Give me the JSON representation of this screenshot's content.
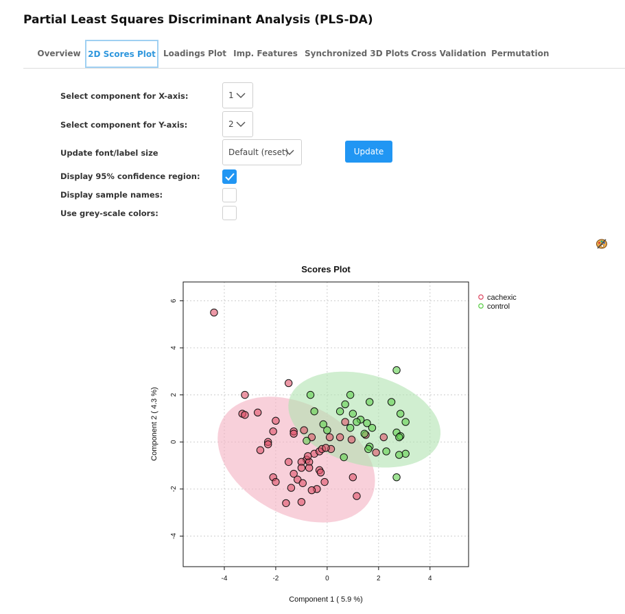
{
  "page": {
    "title": "Partial Least Squares Discriminant Analysis (PLS-DA)"
  },
  "tabs": [
    {
      "label": "Overview",
      "active": false
    },
    {
      "label": "2D Scores Plot",
      "active": true
    },
    {
      "label": "Loadings Plot",
      "active": false
    },
    {
      "label": "Imp. Features",
      "active": false
    },
    {
      "label": "Synchronized 3D Plots",
      "active": false
    },
    {
      "label": "Cross Validation",
      "active": false
    },
    {
      "label": "Permutation",
      "active": false
    }
  ],
  "form": {
    "x_axis": {
      "label": "Select component for X-axis:",
      "value": "1"
    },
    "y_axis": {
      "label": "Select component for Y-axis:",
      "value": "2"
    },
    "font_size": {
      "label": "Update font/label size",
      "value": "Default (reset)"
    },
    "update_button": "Update",
    "confidence": {
      "label": "Display 95% confidence region:",
      "checked": true
    },
    "sample_names": {
      "label": "Display sample names:",
      "checked": false
    },
    "greyscale": {
      "label": "Use grey-scale colors:",
      "checked": false
    }
  },
  "icons": {
    "palette": "palette-icon",
    "dropdown": "chevron-down-icon",
    "check": "check-icon"
  },
  "chart_data": {
    "type": "scatter",
    "title": "Scores Plot",
    "xlabel": "Component 1 ( 5.9 %)",
    "ylabel": "Component 2 ( 4.3 %)",
    "xlim": [
      -5.6,
      5.5
    ],
    "ylim": [
      -5.3,
      6.8
    ],
    "xticks": [
      -4,
      -2,
      0,
      2,
      4
    ],
    "yticks": [
      -4,
      -2,
      0,
      2,
      4,
      6
    ],
    "grid": true,
    "legend_position": "top-right",
    "series": [
      {
        "name": "cachexic",
        "color": "#df536b",
        "fill": "rgba(223,83,107,0.6)",
        "ellipse": {
          "cx": -1.2,
          "cy": -0.75,
          "rx": 3.35,
          "ry": 2.3,
          "angle_deg": -34,
          "fill": "rgba(243,176,193,0.6)"
        },
        "points": [
          [
            -4.4,
            5.5
          ],
          [
            -1.5,
            2.5
          ],
          [
            -3.2,
            2.0
          ],
          [
            -3.3,
            1.2
          ],
          [
            -3.2,
            1.15
          ],
          [
            -2.7,
            1.25
          ],
          [
            -2.0,
            0.9
          ],
          [
            -2.1,
            0.45
          ],
          [
            -1.3,
            0.45
          ],
          [
            -1.3,
            0.35
          ],
          [
            -2.3,
            0.0
          ],
          [
            -2.3,
            -0.1
          ],
          [
            -2.6,
            -0.35
          ],
          [
            -0.9,
            0.5
          ],
          [
            -0.6,
            0.2
          ],
          [
            -0.5,
            -0.5
          ],
          [
            -0.8,
            -0.75
          ],
          [
            -0.7,
            -0.85
          ],
          [
            -0.75,
            -0.6
          ],
          [
            -0.3,
            -0.4
          ],
          [
            -0.2,
            -0.3
          ],
          [
            -1.0,
            -0.85
          ],
          [
            -1.5,
            -0.85
          ],
          [
            -1.0,
            -1.1
          ],
          [
            -0.7,
            -1.1
          ],
          [
            -0.3,
            -1.2
          ],
          [
            -0.25,
            -1.3
          ],
          [
            -1.3,
            -1.35
          ],
          [
            -1.15,
            -1.6
          ],
          [
            -2.1,
            -1.5
          ],
          [
            -2.0,
            -1.7
          ],
          [
            -0.95,
            -1.75
          ],
          [
            -0.1,
            -1.7
          ],
          [
            -0.4,
            -2.0
          ],
          [
            -0.6,
            -2.05
          ],
          [
            -1.4,
            -1.95
          ],
          [
            -1.6,
            -2.6
          ],
          [
            -1.0,
            -2.55
          ],
          [
            0.1,
            0.2
          ],
          [
            0.5,
            0.2
          ],
          [
            0.95,
            0.1
          ],
          [
            0.7,
            0.85
          ],
          [
            1.5,
            0.3
          ],
          [
            1.9,
            -0.45
          ],
          [
            2.2,
            0.2
          ],
          [
            1.0,
            -1.5
          ],
          [
            1.15,
            -2.3
          ],
          [
            0.15,
            -0.3
          ],
          [
            -0.05,
            -0.25
          ]
        ]
      },
      {
        "name": "control",
        "color": "#61d04f",
        "fill": "rgba(97,208,79,0.6)",
        "ellipse": {
          "cx": 1.45,
          "cy": 0.95,
          "rx": 3.05,
          "ry": 1.9,
          "angle_deg": -18,
          "fill": "rgba(176,226,176,0.6)"
        },
        "points": [
          [
            2.7,
            3.05
          ],
          [
            -0.65,
            2.0
          ],
          [
            0.9,
            2.0
          ],
          [
            1.65,
            1.7
          ],
          [
            2.5,
            1.7
          ],
          [
            -0.5,
            1.3
          ],
          [
            0.5,
            1.3
          ],
          [
            0.7,
            1.6
          ],
          [
            1.0,
            1.2
          ],
          [
            2.85,
            1.2
          ],
          [
            1.3,
            0.95
          ],
          [
            3.05,
            0.85
          ],
          [
            1.15,
            0.85
          ],
          [
            1.55,
            0.8
          ],
          [
            -0.15,
            0.75
          ],
          [
            1.75,
            0.6
          ],
          [
            0.9,
            0.6
          ],
          [
            0.0,
            0.5
          ],
          [
            1.45,
            0.35
          ],
          [
            2.7,
            0.4
          ],
          [
            2.85,
            0.25
          ],
          [
            2.8,
            0.2
          ],
          [
            -0.8,
            0.05
          ],
          [
            1.65,
            -0.2
          ],
          [
            2.3,
            -0.4
          ],
          [
            3.05,
            -0.5
          ],
          [
            2.8,
            -0.55
          ],
          [
            0.65,
            -0.65
          ],
          [
            1.6,
            -0.3
          ],
          [
            2.7,
            -1.5
          ]
        ]
      }
    ]
  }
}
